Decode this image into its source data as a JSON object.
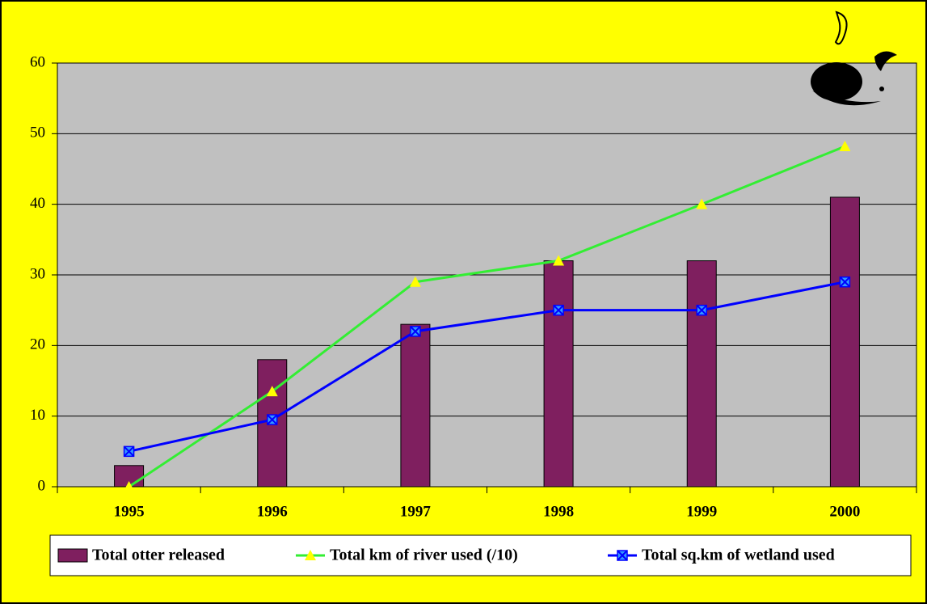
{
  "chart_data": {
    "type": "combo",
    "categories": [
      "1995",
      "1996",
      "1997",
      "1998",
      "1999",
      "2000"
    ],
    "series": [
      {
        "name": "Total otter released",
        "type": "bar",
        "color": "#7f1f5f",
        "values": [
          3,
          18,
          23,
          32,
          32,
          41
        ]
      },
      {
        "name": "Total km of river used (/10)",
        "type": "line",
        "color": "#33ee33",
        "marker": "triangle",
        "marker_color": "#ffff00",
        "values": [
          0,
          13.5,
          29,
          32,
          40,
          48.2
        ]
      },
      {
        "name": "Total sq.km of wetland used",
        "type": "line",
        "color": "#0000ff",
        "marker": "x-square",
        "marker_color": "#3399ff",
        "values": [
          5,
          9.5,
          22,
          25,
          25,
          29
        ]
      }
    ],
    "ylim": [
      0,
      60
    ],
    "yticks": [
      0,
      10,
      20,
      30,
      40,
      50,
      60
    ],
    "grid": true,
    "background": "#ffff00",
    "plot_background": "#c0c0c0",
    "legend": "bottom"
  }
}
